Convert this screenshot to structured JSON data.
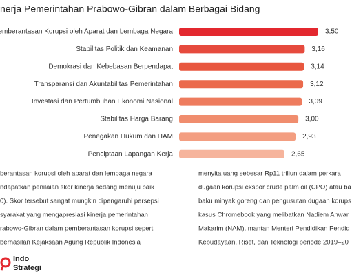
{
  "chart_data": {
    "type": "bar",
    "orientation": "horizontal",
    "title": "nerja Pemerintahan Prabowo-Gibran dalam Berbagai Bidang",
    "categories": [
      "Pemberantasan Korupsi oleh Aparat dan Lembaga Negara",
      "Stabilitas Politik dan Keamanan",
      "Demokrasi dan Kebebasan Berpendapat",
      "Transparansi dan Akuntabilitas Pemerintahan",
      "Investasi dan Pertumbuhan Ekonomi Nasional",
      "Stabilitas Harga Barang",
      "Penegakan Hukum dan HAM",
      "Penciptaan Lapangan Kerja"
    ],
    "values": [
      3.5,
      3.16,
      3.14,
      3.12,
      3.09,
      3.0,
      2.93,
      2.65
    ],
    "value_labels": [
      "3,50",
      "3,16",
      "3,14",
      "3,12",
      "3,09",
      "3,00",
      "2,93",
      "2,65"
    ],
    "colors": [
      "#e3282f",
      "#e64a3d",
      "#e8573f",
      "#eb6a4c",
      "#ee7c5e",
      "#f08d6e",
      "#f39e81",
      "#f6b49c"
    ],
    "xlim": [
      0,
      3.5
    ]
  },
  "article": {
    "left_column": [
      "berantasan korupsi oleh aparat dan lembaga negara",
      "ndapatkan penilaian skor kinerja sedang menuju baik",
      "0). Skor tersebut sangat mungkin dipengaruhi persepsi",
      "syarakat yang mengapresiasi kinerja pemerintahan",
      "rabowo-Gibran dalam pemberantasan korupsi seperti",
      "berhasilan Kejaksaan Agung Republik Indonesia"
    ],
    "right_column": [
      "menyita uang sebesar Rp11 triliun dalam perkara",
      "dugaan korupsi ekspor crude palm oil (CPO) atau ba",
      "baku minyak goreng dan pengusutan dugaan korups",
      "kasus Chromebook yang melibatkan Nadiem Anwar",
      "Makarim (NAM), mantan Menteri Pendidikan Pendid",
      "Kebudayaan, Riset, dan Teknologi periode 2019–20"
    ]
  },
  "logo": [
    "Indo",
    "Strategi"
  ]
}
